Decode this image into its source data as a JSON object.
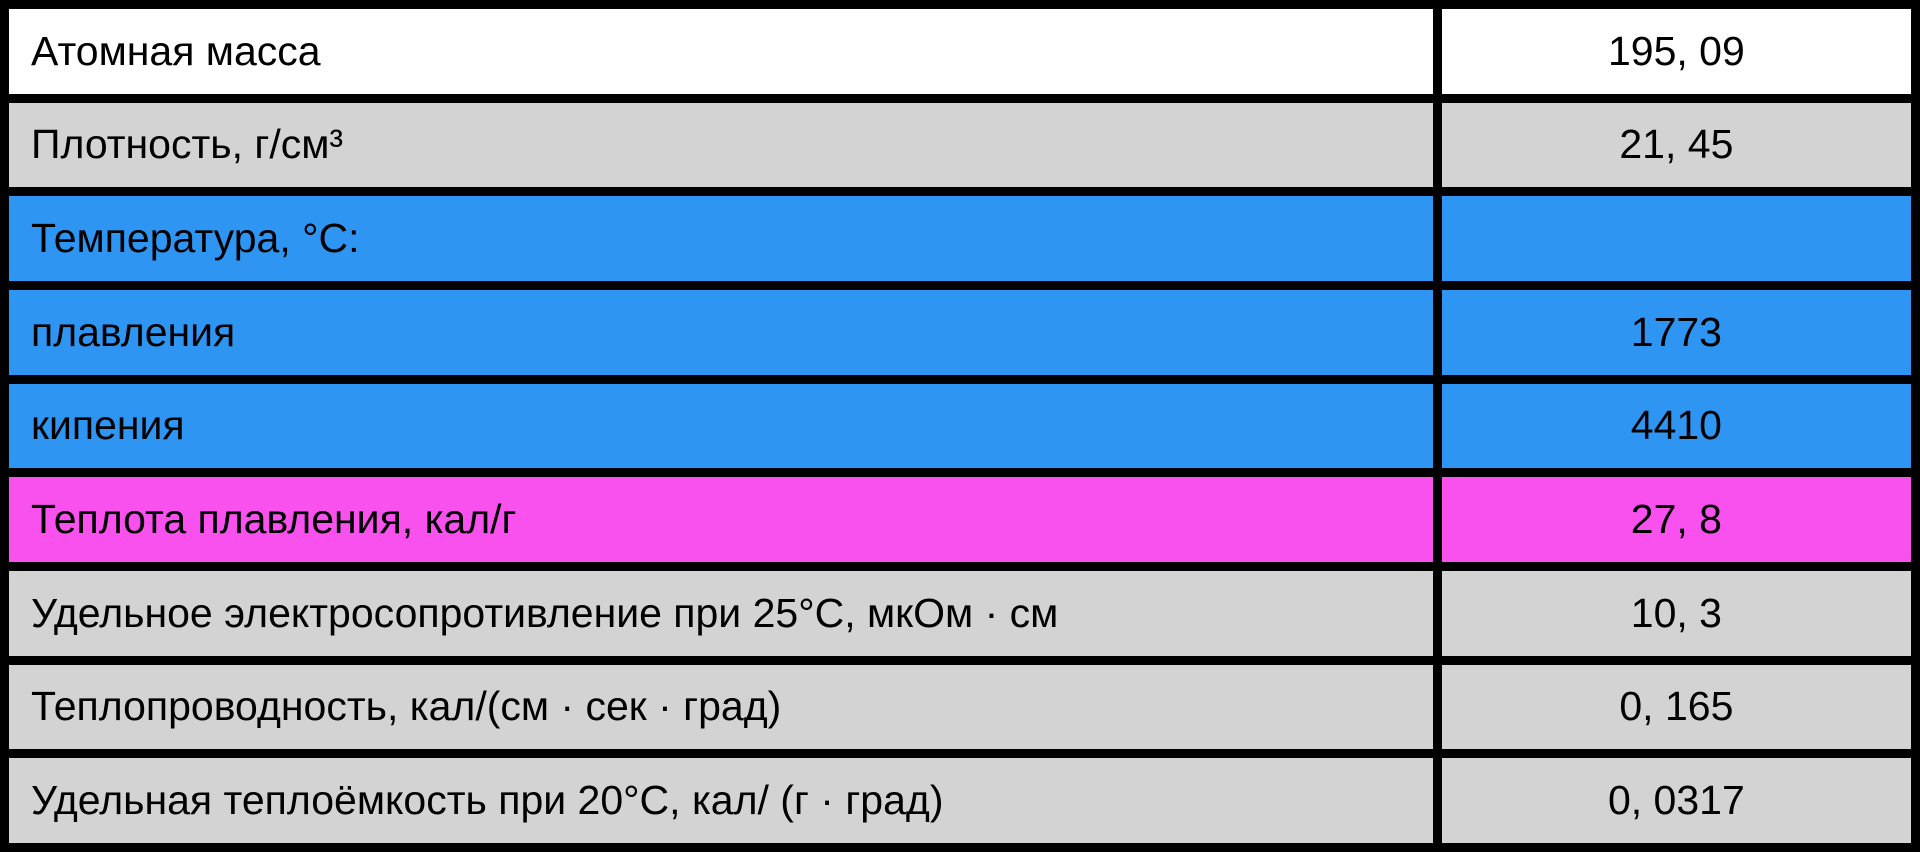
{
  "table": {
    "rows": [
      {
        "label": "Атомная масса",
        "value": "195, 09",
        "bg": "white"
      },
      {
        "label": "Плотность, г/см³",
        "value": "21, 45",
        "bg": "gray"
      },
      {
        "label": "Температура, °С:",
        "value": "",
        "bg": "blue"
      },
      {
        "label": "плавления",
        "value": "1773",
        "bg": "blue"
      },
      {
        "label": "кипения",
        "value": "4410",
        "bg": "blue"
      },
      {
        "label": "Теплота плавления, кал/г",
        "value": "27, 8",
        "bg": "magenta"
      },
      {
        "label": "Удельное электросопротивление при 25°С, мкОм · см",
        "value": "10, 3",
        "bg": "gray"
      },
      {
        "label": "Теплопроводность, кал/(см · сек · град)",
        "value": "0, 165",
        "bg": "gray"
      },
      {
        "label": "Удельная теплоёмкость при 20°С, кал/ (г · град)",
        "value": "0, 0317",
        "bg": "gray"
      }
    ],
    "colors": {
      "white": "#ffffff",
      "gray": "#d3d3d3",
      "blue": "#2e96f2",
      "magenta": "#f851ee",
      "border": "#000000",
      "text": "#000000"
    }
  },
  "chart_data": {
    "type": "table",
    "rows": [
      [
        "Атомная масса",
        "195, 09"
      ],
      [
        "Плотность, г/см³",
        "21, 45"
      ],
      [
        "Температура, °С:",
        ""
      ],
      [
        "плавления",
        "1773"
      ],
      [
        "кипения",
        "4410"
      ],
      [
        "Теплота плавления, кал/г",
        "27, 8"
      ],
      [
        "Удельное электросопротивление при 25°С, мкОм · см",
        "10, 3"
      ],
      [
        "Теплопроводность, кал/(см · сек · град)",
        "0, 165"
      ],
      [
        "Удельная теплоёмкость при 20°С, кал/ (г · град)",
        "0, 0317"
      ]
    ],
    "row_colors": [
      "white",
      "gray",
      "blue",
      "blue",
      "blue",
      "magenta",
      "gray",
      "gray",
      "gray"
    ]
  }
}
